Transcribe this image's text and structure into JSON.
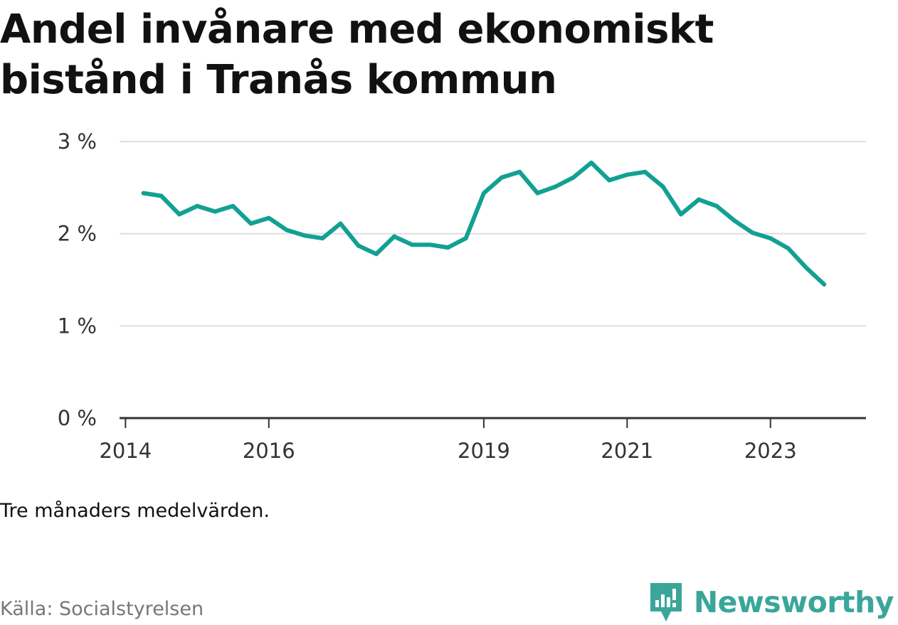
{
  "header": {
    "title": "Andel invånare med ekonomiskt bistånd i Tranås kommun"
  },
  "chart_data": {
    "type": "line",
    "title": "Andel invånare med ekonomiskt bistånd i Tranås kommun",
    "xlabel": "",
    "ylabel": "",
    "ylim": [
      0,
      3
    ],
    "xlim": [
      2013.917,
      2024.333
    ],
    "y_ticks": [
      0,
      1,
      2,
      3
    ],
    "y_tick_labels": [
      "0 %",
      "1 %",
      "2 %",
      "3 %"
    ],
    "x_ticks": [
      2014,
      2016,
      2019,
      2021,
      2023
    ],
    "x_tick_labels": [
      "2014",
      "2016",
      "2019",
      "2021",
      "2023"
    ],
    "grid": true,
    "color": "#12a094",
    "series": [
      {
        "name": "Andel invånare med ekonomiskt bistånd",
        "x": [
          2014.25,
          2014.5,
          2014.75,
          2015.0,
          2015.25,
          2015.5,
          2015.75,
          2016.0,
          2016.25,
          2016.5,
          2016.75,
          2017.0,
          2017.25,
          2017.5,
          2017.75,
          2018.0,
          2018.25,
          2018.5,
          2018.75,
          2019.0,
          2019.25,
          2019.5,
          2019.75,
          2020.0,
          2020.25,
          2020.5,
          2020.75,
          2021.0,
          2021.25,
          2021.5,
          2021.75,
          2022.0,
          2022.25,
          2022.5,
          2022.75,
          2023.0,
          2023.25,
          2023.5,
          2023.75
        ],
        "values": [
          2.44,
          2.41,
          2.21,
          2.3,
          2.24,
          2.3,
          2.11,
          2.17,
          2.04,
          1.98,
          1.95,
          2.11,
          1.87,
          1.78,
          1.97,
          1.88,
          1.88,
          1.85,
          1.95,
          2.44,
          2.61,
          2.67,
          2.44,
          2.51,
          2.61,
          2.77,
          2.58,
          2.64,
          2.67,
          2.51,
          2.21,
          2.37,
          2.3,
          2.14,
          2.01,
          1.95,
          1.84,
          1.63,
          1.45
        ]
      }
    ]
  },
  "footer": {
    "note": "Tre månaders medelvärden.",
    "source": "Källa: Socialstyrelsen",
    "brand": "Newsworthy",
    "brand_color": "#3aa69a"
  }
}
